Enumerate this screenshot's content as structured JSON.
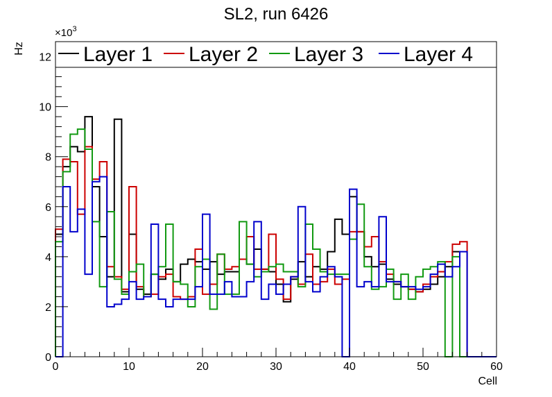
{
  "chart_data": {
    "type": "line",
    "title": "SL2, run 6426",
    "xlabel": "Cell",
    "ylabel": "Hz",
    "y_multiplier_label": "×10",
    "y_multiplier_exponent": "3",
    "xlim": [
      0,
      60
    ],
    "ylim": [
      0,
      12.6
    ],
    "xticks": [
      0,
      10,
      20,
      30,
      40,
      50,
      60
    ],
    "xtick_labels": [
      "0",
      "10",
      "20",
      "30",
      "40",
      "50",
      "60"
    ],
    "yticks": [
      0,
      2,
      4,
      6,
      8,
      10,
      12
    ],
    "ytick_labels": [
      "0",
      "2",
      "4",
      "6",
      "8",
      "10",
      "12"
    ],
    "legend_position": "top",
    "series": [
      {
        "name": "Layer 1",
        "color": "#000000",
        "values": [
          4.9,
          7.6,
          8.4,
          8.2,
          9.6,
          6.8,
          4.8,
          3.2,
          9.5,
          2.6,
          4.9,
          2.7,
          2.5,
          3.3,
          3.1,
          3.5,
          3.0,
          3.7,
          3.9,
          3.8,
          3.5,
          3.8,
          3.3,
          3.4,
          3.4,
          3.9,
          3.7,
          4.3,
          3.5,
          3.4,
          2.9,
          2.2,
          3.1,
          3.8,
          3.2,
          3.6,
          3.5,
          4.2,
          5.5,
          4.9,
          6.4,
          5.0,
          4.0,
          3.6,
          3.7,
          3.1,
          2.9,
          2.8,
          2.7,
          2.6,
          2.7,
          2.9,
          3.2,
          3.6,
          4.2,
          0.0,
          0.0,
          0.0,
          0.0,
          0.0
        ]
      },
      {
        "name": "Layer 2",
        "color": "#cc0000",
        "values": [
          5.1,
          7.9,
          7.8,
          5.7,
          8.4,
          7.1,
          7.8,
          3.6,
          3.2,
          2.7,
          6.8,
          2.8,
          2.4,
          2.5,
          3.2,
          3.3,
          2.4,
          2.3,
          2.4,
          4.3,
          2.5,
          2.9,
          4.1,
          3.5,
          3.6,
          3.9,
          4.8,
          3.5,
          3.5,
          4.9,
          3.1,
          2.3,
          3.2,
          2.9,
          4.1,
          2.9,
          3.0,
          3.5,
          2.9,
          3.1,
          5.0,
          5.0,
          4.4,
          4.8,
          3.8,
          3.3,
          3.0,
          2.8,
          2.7,
          2.6,
          2.9,
          3.2,
          3.4,
          3.8,
          4.5,
          4.6,
          0.0,
          0.0,
          0.0,
          0.0
        ]
      },
      {
        "name": "Layer 3",
        "color": "#119911",
        "values": [
          4.6,
          7.4,
          8.9,
          9.1,
          8.3,
          5.4,
          2.8,
          5.8,
          3.1,
          2.5,
          3.4,
          3.7,
          2.4,
          3.3,
          3.6,
          5.3,
          3.0,
          2.9,
          2.0,
          3.6,
          3.9,
          1.9,
          4.1,
          2.5,
          2.5,
          5.4,
          3.7,
          3.2,
          3.4,
          3.6,
          3.7,
          3.4,
          3.4,
          2.8,
          5.3,
          4.3,
          3.4,
          3.3,
          3.3,
          3.3,
          4.7,
          6.1,
          3.6,
          2.7,
          2.8,
          3.5,
          2.3,
          3.3,
          2.3,
          3.2,
          3.5,
          3.6,
          3.8,
          0.0,
          4.0,
          0.0,
          0.0,
          0.0,
          0.0,
          0.0
        ]
      },
      {
        "name": "Layer 4",
        "color": "#0000cc",
        "values": [
          0.0,
          6.8,
          5.0,
          5.9,
          3.3,
          7.0,
          7.2,
          2.0,
          2.1,
          2.3,
          3.0,
          2.3,
          2.4,
          5.3,
          2.3,
          2.0,
          2.3,
          2.3,
          2.3,
          2.8,
          5.7,
          2.5,
          2.5,
          3.0,
          2.4,
          2.4,
          3.0,
          5.4,
          2.3,
          2.9,
          2.5,
          2.9,
          3.2,
          6.0,
          3.0,
          2.6,
          3.2,
          3.6,
          3.2,
          0.0,
          6.7,
          2.8,
          3.0,
          2.8,
          5.6,
          3.0,
          3.0,
          2.8,
          2.8,
          2.7,
          2.8,
          3.3,
          3.7,
          3.2,
          3.6,
          4.2,
          0.0,
          0.0,
          0.0,
          0.0
        ]
      }
    ]
  }
}
